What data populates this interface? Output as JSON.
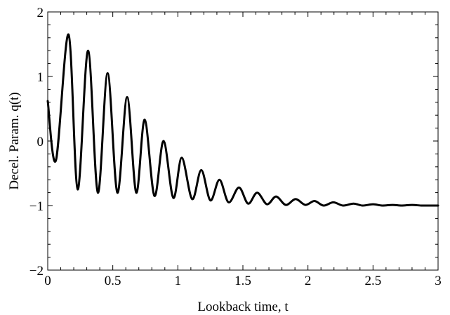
{
  "chart_data": {
    "type": "line",
    "title": "",
    "xlabel": "Lookback time, t",
    "ylabel": "Decel. Param. q(t)",
    "xlim": [
      0,
      3
    ],
    "ylim": [
      -2,
      2
    ],
    "x_ticks": [
      0,
      0.5,
      1,
      1.5,
      2,
      2.5,
      3
    ],
    "x_tick_labels": [
      "0",
      "0.5",
      "1",
      "1.5",
      "2",
      "2.5",
      "3"
    ],
    "y_ticks": [
      -2,
      -1,
      0,
      1,
      2
    ],
    "y_tick_labels": [
      "−2",
      "−1",
      "0",
      "1",
      "2"
    ],
    "grid": false,
    "legend": "none",
    "line_color": "#000000",
    "series": [
      {
        "x": [
          0.0,
          0.063,
          0.16,
          0.23,
          0.31,
          0.385,
          0.46,
          0.535,
          0.61,
          0.68,
          0.745,
          0.82,
          0.89,
          0.965,
          1.03,
          1.11,
          1.18,
          1.25,
          1.32,
          1.39,
          1.47,
          1.54,
          1.61,
          1.685,
          1.755,
          1.83,
          1.905,
          1.98,
          2.05,
          2.12,
          2.195,
          2.27,
          2.35,
          2.42,
          2.5,
          2.57,
          2.65,
          2.72,
          2.8,
          2.87,
          2.94,
          3.0
        ],
        "y": [
          0.62,
          -0.3,
          1.65,
          -0.75,
          1.4,
          -0.8,
          1.05,
          -0.8,
          0.68,
          -0.8,
          0.33,
          -0.85,
          0.0,
          -0.88,
          -0.26,
          -0.9,
          -0.45,
          -0.92,
          -0.6,
          -0.95,
          -0.72,
          -0.97,
          -0.8,
          -0.98,
          -0.86,
          -0.99,
          -0.9,
          -0.99,
          -0.93,
          -1.0,
          -0.95,
          -1.0,
          -0.97,
          -1.0,
          -0.98,
          -1.0,
          -0.99,
          -1.0,
          -0.99,
          -1.0,
          -1.0,
          -1.0
        ]
      }
    ]
  }
}
